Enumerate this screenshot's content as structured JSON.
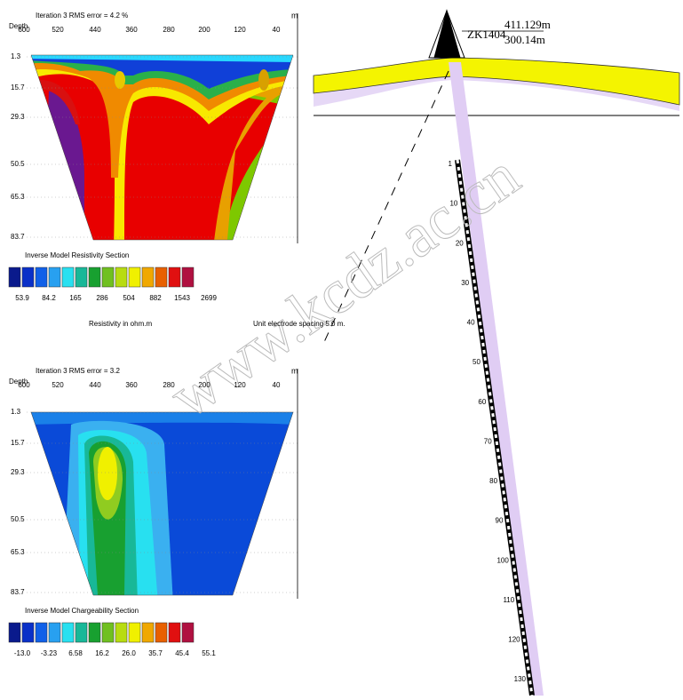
{
  "resistivity": {
    "depth_label": "Depth",
    "title": "Iteration 3 RMS error = 4.2 %",
    "unit": "m",
    "x_labels": [
      "600",
      "520",
      "440",
      "360",
      "280",
      "200",
      "120",
      "40"
    ],
    "depth_labels": [
      "1.3",
      "15.7",
      "29.3",
      "50.5",
      "65.3",
      "83.7"
    ],
    "section_title": "Inverse Model Resistivity Section",
    "legend_labels": [
      "53.9",
      "84.2",
      "165",
      "286",
      "504",
      "882",
      "1543",
      "2699"
    ],
    "legend_unit": "Resistivity in ohm.m",
    "spacing": "Unit electrode spacing 5.0 m."
  },
  "chargeability": {
    "depth_label": "Depth",
    "title": "Iteration 3 RMS error = 3.2",
    "unit": "m",
    "x_labels": [
      "600",
      "520",
      "440",
      "360",
      "280",
      "200",
      "120",
      "40"
    ],
    "depth_labels": [
      "1.3",
      "15.7",
      "29.3",
      "50.5",
      "65.3",
      "83.7"
    ],
    "section_title": "Inverse Model Chargeability Section",
    "legend_labels": [
      "-13.0",
      "-3.23",
      "6.58",
      "16.2",
      "26.0",
      "35.7",
      "45.4",
      "55.1"
    ]
  },
  "borehole": {
    "name": "ZK1404",
    "elevation": "411.129m",
    "depth": "300.14m",
    "depth_ticks": [
      "1",
      "10",
      "20",
      "30",
      "40",
      "50",
      "60",
      "70",
      "80",
      "90",
      "100",
      "110",
      "120",
      "130"
    ]
  },
  "watermark": "www.kcdz.ac.cn"
}
